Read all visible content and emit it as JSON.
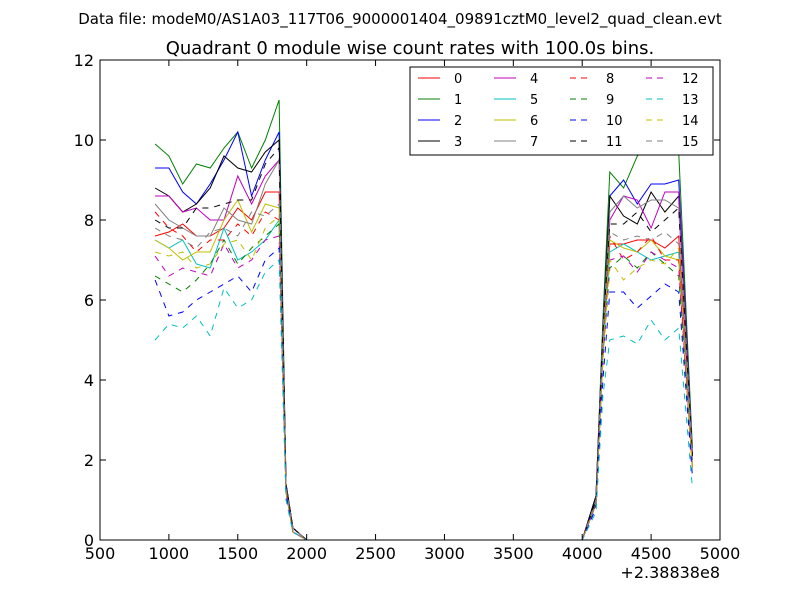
{
  "header": {
    "suptitle": "Data file: modeM0/AS1A03_117T06_9000001404_09891cztM0_level2_quad_clean.evt"
  },
  "chart_data": {
    "type": "line",
    "title": "Quadrant 0 module wise count rates with 100.0s bins.",
    "xlabel": "",
    "ylabel": "",
    "xlim": [
      500,
      5000
    ],
    "ylim": [
      0,
      12
    ],
    "x_offset_label": "+2.38838e8",
    "x_ticks": [
      500,
      1000,
      1500,
      2000,
      2500,
      3000,
      3500,
      4000,
      4500,
      5000
    ],
    "y_ticks": [
      0,
      2,
      4,
      6,
      8,
      10,
      12
    ],
    "x_tick_labels": [
      "500",
      "1000",
      "1500",
      "2000",
      "2500",
      "3000",
      "3500",
      "4000",
      "4500",
      "5000"
    ],
    "y_tick_labels": [
      "0",
      "2",
      "4",
      "6",
      "8",
      "10",
      "12"
    ],
    "grid": false,
    "legend": {
      "placement": "top-right",
      "columns": 4
    },
    "x": [
      900,
      1000,
      1100,
      1200,
      1300,
      1400,
      1500,
      1600,
      1700,
      1800,
      1850,
      1900,
      2000,
      2100,
      2200,
      2300,
      2400,
      2500,
      2600,
      2700,
      2800,
      2900,
      3000,
      3100,
      3200,
      3300,
      3400,
      3500,
      3600,
      3700,
      3800,
      3900,
      4000,
      4100,
      4150,
      4200,
      4300,
      4400,
      4500,
      4600,
      4700,
      4800
    ],
    "series": [
      {
        "name": "0",
        "color": "#ff0000",
        "dash": false,
        "values": [
          7.6,
          7.7,
          7.9,
          7.6,
          7.6,
          7.8,
          8.3,
          8.0,
          8.7,
          8.7,
          1.4,
          0.3,
          0,
          0,
          0,
          0,
          0,
          0,
          0,
          0,
          0,
          0,
          0,
          0,
          0,
          0,
          0,
          0,
          0,
          0,
          0,
          0,
          0,
          1.0,
          5.0,
          7.4,
          7.4,
          7.5,
          7.5,
          7.3,
          7.6,
          2.0
        ]
      },
      {
        "name": "1",
        "color": "#008000",
        "dash": false,
        "values": [
          9.9,
          9.6,
          8.9,
          9.4,
          9.3,
          9.8,
          10.2,
          9.3,
          10.0,
          11.0,
          1.4,
          0.3,
          0,
          0,
          0,
          0,
          0,
          0,
          0,
          0,
          0,
          0,
          0,
          0,
          0,
          0,
          0,
          0,
          0,
          0,
          0,
          0,
          0,
          1.1,
          5.5,
          9.2,
          8.8,
          9.6,
          9.9,
          10.0,
          9.7,
          2.3
        ]
      },
      {
        "name": "2",
        "color": "#0000ff",
        "dash": false,
        "values": [
          9.3,
          9.3,
          8.7,
          8.4,
          8.9,
          9.5,
          10.2,
          8.6,
          9.5,
          10.2,
          1.4,
          0.3,
          0,
          0,
          0,
          0,
          0,
          0,
          0,
          0,
          0,
          0,
          0,
          0,
          0,
          0,
          0,
          0,
          0,
          0,
          0,
          0,
          0,
          1.1,
          5.3,
          8.6,
          9.0,
          8.4,
          8.9,
          8.9,
          9.0,
          2.2
        ]
      },
      {
        "name": "3",
        "color": "#000000",
        "dash": false,
        "values": [
          8.8,
          8.6,
          8.2,
          8.4,
          8.8,
          9.6,
          9.3,
          9.2,
          9.7,
          10.0,
          1.4,
          0.3,
          0,
          0,
          0,
          0,
          0,
          0,
          0,
          0,
          0,
          0,
          0,
          0,
          0,
          0,
          0,
          0,
          0,
          0,
          0,
          0,
          0,
          1.1,
          5.2,
          8.6,
          8.1,
          7.9,
          8.7,
          8.2,
          8.6,
          2.1
        ]
      },
      {
        "name": "4",
        "color": "#bf00bf",
        "dash": false,
        "values": [
          8.6,
          8.6,
          8.2,
          8.3,
          8.0,
          8.0,
          9.1,
          8.4,
          9.1,
          9.5,
          1.3,
          0.3,
          0,
          0,
          0,
          0,
          0,
          0,
          0,
          0,
          0,
          0,
          0,
          0,
          0,
          0,
          0,
          0,
          0,
          0,
          0,
          0,
          0,
          1.0,
          5.1,
          8.0,
          8.6,
          8.5,
          7.8,
          8.7,
          8.7,
          2.1
        ]
      },
      {
        "name": "5",
        "color": "#00bfbf",
        "dash": false,
        "values": [
          7.5,
          7.3,
          7.5,
          6.9,
          6.8,
          7.8,
          7.0,
          7.2,
          7.5,
          8.0,
          1.2,
          0.2,
          0,
          0,
          0,
          0,
          0,
          0,
          0,
          0,
          0,
          0,
          0,
          0,
          0,
          0,
          0,
          0,
          0,
          0,
          0,
          0,
          0,
          0.9,
          4.6,
          7.2,
          7.4,
          7.2,
          7.0,
          7.1,
          7.2,
          1.9
        ]
      },
      {
        "name": "6",
        "color": "#bfbf00",
        "dash": false,
        "values": [
          7.5,
          7.3,
          7.0,
          7.2,
          7.2,
          8.0,
          8.5,
          7.7,
          8.4,
          8.3,
          1.2,
          0.2,
          0,
          0,
          0,
          0,
          0,
          0,
          0,
          0,
          0,
          0,
          0,
          0,
          0,
          0,
          0,
          0,
          0,
          0,
          0,
          0,
          0,
          0.9,
          4.8,
          7.5,
          7.3,
          7.2,
          7.5,
          7.1,
          7.0,
          1.8
        ]
      },
      {
        "name": "7",
        "color": "#808080",
        "dash": false,
        "values": [
          8.4,
          8.0,
          7.8,
          7.6,
          7.6,
          8.3,
          8.0,
          7.9,
          8.9,
          9.5,
          1.3,
          0.3,
          0,
          0,
          0,
          0,
          0,
          0,
          0,
          0,
          0,
          0,
          0,
          0,
          0,
          0,
          0,
          0,
          0,
          0,
          0,
          0,
          0,
          1.0,
          5.2,
          8.2,
          8.6,
          8.3,
          8.5,
          8.5,
          8.3,
          2.1
        ]
      },
      {
        "name": "8",
        "color": "#ff0000",
        "dash": true,
        "values": [
          8.2,
          7.8,
          7.6,
          7.2,
          7.5,
          7.5,
          7.9,
          7.6,
          8.2,
          8.0,
          1.2,
          0.2,
          0,
          0,
          0,
          0,
          0,
          0,
          0,
          0,
          0,
          0,
          0,
          0,
          0,
          0,
          0,
          0,
          0,
          0,
          0,
          0,
          0,
          0.9,
          4.7,
          7.6,
          7.0,
          7.2,
          7.6,
          7.0,
          7.0,
          1.8
        ]
      },
      {
        "name": "9",
        "color": "#008000",
        "dash": true,
        "values": [
          6.6,
          6.4,
          6.2,
          6.5,
          6.9,
          7.5,
          6.9,
          7.3,
          7.6,
          7.9,
          1.2,
          0.2,
          0,
          0,
          0,
          0,
          0,
          0,
          0,
          0,
          0,
          0,
          0,
          0,
          0,
          0,
          0,
          0,
          0,
          0,
          0,
          0,
          0,
          0.9,
          4.5,
          6.8,
          7.1,
          6.8,
          7.2,
          6.9,
          6.6,
          1.8
        ]
      },
      {
        "name": "10",
        "color": "#0000ff",
        "dash": true,
        "values": [
          6.5,
          5.6,
          5.7,
          6.0,
          6.2,
          6.4,
          6.6,
          6.2,
          7.0,
          7.3,
          1.1,
          0.2,
          0,
          0,
          0,
          0,
          0,
          0,
          0,
          0,
          0,
          0,
          0,
          0,
          0,
          0,
          0,
          0,
          0,
          0,
          0,
          0,
          0,
          0.8,
          4.0,
          6.2,
          6.2,
          5.8,
          6.1,
          6.4,
          6.2,
          1.6
        ]
      },
      {
        "name": "11",
        "color": "#000000",
        "dash": true,
        "values": [
          8.0,
          7.8,
          7.8,
          8.3,
          8.3,
          8.4,
          8.5,
          8.5,
          9.4,
          9.8,
          1.4,
          0.3,
          0,
          0,
          0,
          0,
          0,
          0,
          0,
          0,
          0,
          0,
          0,
          0,
          0,
          0,
          0,
          0,
          0,
          0,
          0,
          0,
          0,
          1.0,
          5.2,
          7.9,
          7.9,
          8.2,
          7.7,
          8.0,
          8.3,
          2.1
        ]
      },
      {
        "name": "12",
        "color": "#bf00bf",
        "dash": true,
        "values": [
          7.1,
          6.6,
          6.8,
          6.7,
          6.6,
          7.4,
          6.8,
          7.0,
          7.5,
          7.6,
          1.2,
          0.2,
          0,
          0,
          0,
          0,
          0,
          0,
          0,
          0,
          0,
          0,
          0,
          0,
          0,
          0,
          0,
          0,
          0,
          0,
          0,
          0,
          0,
          0.9,
          4.5,
          7.0,
          7.1,
          6.7,
          7.2,
          7.0,
          6.8,
          1.8
        ]
      },
      {
        "name": "13",
        "color": "#00bfbf",
        "dash": true,
        "values": [
          5.0,
          5.4,
          5.3,
          5.6,
          5.1,
          6.3,
          5.8,
          6.0,
          6.7,
          7.0,
          1.0,
          0.2,
          0,
          0,
          0,
          0,
          0,
          0,
          0,
          0,
          0,
          0,
          0,
          0,
          0,
          0,
          0,
          0,
          0,
          0,
          0,
          0,
          0,
          0.7,
          3.6,
          5.0,
          5.1,
          4.9,
          5.5,
          5.0,
          5.3,
          1.3
        ]
      },
      {
        "name": "14",
        "color": "#bfbf00",
        "dash": true,
        "values": [
          7.2,
          7.1,
          7.2,
          6.8,
          6.9,
          7.4,
          7.5,
          7.0,
          7.8,
          8.1,
          1.2,
          0.2,
          0,
          0,
          0,
          0,
          0,
          0,
          0,
          0,
          0,
          0,
          0,
          0,
          0,
          0,
          0,
          0,
          0,
          0,
          0,
          0,
          0,
          0.9,
          4.5,
          7.0,
          6.5,
          6.8,
          7.0,
          6.9,
          7.3,
          1.8
        ]
      },
      {
        "name": "15",
        "color": "#808080",
        "dash": true,
        "values": [
          7.8,
          7.6,
          7.5,
          7.3,
          7.7,
          7.8,
          7.6,
          8.2,
          8.1,
          8.4,
          1.3,
          0.2,
          0,
          0,
          0,
          0,
          0,
          0,
          0,
          0,
          0,
          0,
          0,
          0,
          0,
          0,
          0,
          0,
          0,
          0,
          0,
          0,
          0,
          0.9,
          4.9,
          7.7,
          7.5,
          7.6,
          7.5,
          7.7,
          7.4,
          2.0
        ]
      }
    ]
  }
}
